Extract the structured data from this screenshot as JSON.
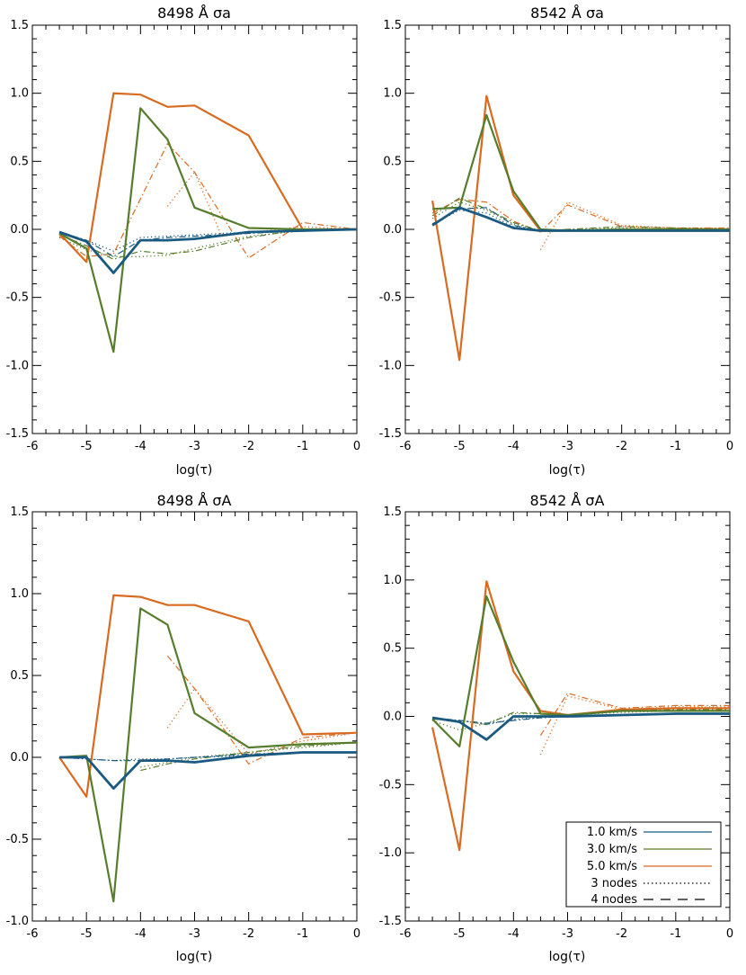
{
  "colors": {
    "v1": "#1a5a80",
    "v3": "#567d2c",
    "v5": "#d86b21",
    "axis": "#000000"
  },
  "legend": {
    "entries": [
      {
        "label": "1.0 km/s",
        "color_key": "v1",
        "style": "solid"
      },
      {
        "label": "3.0 km/s",
        "color_key": "v3",
        "style": "solid"
      },
      {
        "label": "5.0 km/s",
        "color_key": "v5",
        "style": "solid"
      },
      {
        "label": "3 nodes",
        "color_key": "axis",
        "style": "dotted"
      },
      {
        "label": "4 nodes",
        "color_key": "axis",
        "style": "dashed"
      }
    ]
  },
  "chart_data": [
    {
      "type": "line",
      "title": "8498 Å σa",
      "xlabel": "log(τ)",
      "ylabel": "",
      "xlim": [
        -6,
        0
      ],
      "ylim": [
        -1.5,
        1.5
      ],
      "xticks": [
        "-6",
        "-5",
        "-4",
        "-3",
        "-2",
        "-1",
        "0"
      ],
      "yticks": [
        "-1.5",
        "-1.0",
        "-0.5",
        "0.0",
        "0.5",
        "1.0",
        "1.5"
      ],
      "series": [
        {
          "color_key": "v5",
          "style": "solid",
          "width": 2.2,
          "x": [
            -5.5,
            -5,
            -4.5,
            -4,
            -3.5,
            -3,
            -2,
            -1,
            0
          ],
          "y": [
            -0.03,
            -0.24,
            1.0,
            0.99,
            0.9,
            0.91,
            0.69,
            0.0,
            0.0
          ]
        },
        {
          "color_key": "v3",
          "style": "solid",
          "width": 2.2,
          "x": [
            -5.5,
            -5,
            -4.5,
            -4,
            -3.5,
            -3,
            -2,
            -1,
            0
          ],
          "y": [
            -0.03,
            -0.14,
            -0.9,
            0.89,
            0.66,
            0.16,
            0.01,
            0.0,
            0.0
          ]
        },
        {
          "color_key": "v1",
          "style": "solid",
          "width": 2.8,
          "x": [
            -5.5,
            -5,
            -4.5,
            -4,
            -3.5,
            -3,
            -2,
            -1,
            0
          ],
          "y": [
            -0.02,
            -0.09,
            -0.32,
            -0.08,
            -0.08,
            -0.07,
            -0.02,
            -0.01,
            0.0
          ]
        },
        {
          "color_key": "v5",
          "style": "dashdot",
          "width": 1.2,
          "x": [
            -5.5,
            -5,
            -4.5,
            -3.5,
            -3,
            -2,
            -1,
            0
          ],
          "y": [
            -0.05,
            -0.2,
            -0.18,
            0.63,
            0.42,
            -0.21,
            0.05,
            0.0
          ]
        },
        {
          "color_key": "v5",
          "style": "dotted",
          "width": 1.3,
          "x": [
            -3.5,
            -3,
            -2.5,
            -1,
            0
          ],
          "y": [
            0.17,
            0.42,
            -0.05,
            0.02,
            0.0
          ]
        },
        {
          "color_key": "v3",
          "style": "dashdot",
          "width": 1.2,
          "x": [
            -5.5,
            -5,
            -4.5,
            -4,
            -3.5,
            -3,
            -2,
            -1,
            0
          ],
          "y": [
            -0.04,
            -0.12,
            -0.22,
            -0.16,
            -0.18,
            -0.16,
            -0.06,
            0.0,
            0.0
          ]
        },
        {
          "color_key": "v3",
          "style": "dotted",
          "width": 1.3,
          "x": [
            -5.5,
            -5,
            -4.5,
            -4,
            -3.5,
            -3,
            -2,
            -1,
            0
          ],
          "y": [
            -0.06,
            -0.15,
            -0.2,
            -0.2,
            -0.19,
            -0.14,
            -0.05,
            -0.01,
            0.0
          ]
        },
        {
          "color_key": "v1",
          "style": "dashdot",
          "width": 1.2,
          "x": [
            -5.5,
            -5,
            -4.5,
            -4,
            -3.5,
            -3,
            -2,
            -1,
            0
          ],
          "y": [
            -0.02,
            -0.08,
            -0.2,
            -0.08,
            -0.06,
            -0.05,
            -0.03,
            -0.01,
            0.0
          ]
        },
        {
          "color_key": "v1",
          "style": "dotted",
          "width": 1.3,
          "x": [
            -5.5,
            -5,
            -4.5,
            -4,
            -3.5,
            -3,
            -2,
            -1,
            0
          ],
          "y": [
            -0.02,
            -0.08,
            -0.16,
            -0.06,
            -0.05,
            -0.04,
            -0.02,
            -0.01,
            0.0
          ]
        }
      ]
    },
    {
      "type": "line",
      "title": "8542 Å σa",
      "xlabel": "log(τ)",
      "ylabel": "",
      "xlim": [
        -6,
        0
      ],
      "ylim": [
        -1.5,
        1.5
      ],
      "xticks": [
        "-6",
        "-5",
        "-4",
        "-3",
        "-2",
        "-1",
        "0"
      ],
      "yticks": [
        "-1.5",
        "-1.0",
        "-0.5",
        "0.0",
        "0.5",
        "1.0",
        "1.5"
      ],
      "series": [
        {
          "color_key": "v5",
          "style": "solid",
          "width": 2.2,
          "x": [
            -5.5,
            -5,
            -4.5,
            -4,
            -3.5,
            -3,
            -2,
            -1,
            0
          ],
          "y": [
            0.21,
            -0.96,
            0.98,
            0.25,
            -0.01,
            -0.01,
            -0.01,
            -0.01,
            -0.01
          ]
        },
        {
          "color_key": "v3",
          "style": "solid",
          "width": 2.2,
          "x": [
            -5.5,
            -5,
            -4.5,
            -4,
            -3.5,
            -3,
            -2,
            -1,
            0
          ],
          "y": [
            0.15,
            0.16,
            0.84,
            0.28,
            0.0,
            -0.01,
            0.0,
            0.0,
            0.0
          ]
        },
        {
          "color_key": "v1",
          "style": "solid",
          "width": 2.8,
          "x": [
            -5.5,
            -5,
            -4.5,
            -4,
            -3.5,
            -3,
            -2,
            -1,
            0
          ],
          "y": [
            0.03,
            0.16,
            0.09,
            0.01,
            -0.01,
            -0.01,
            -0.01,
            -0.01,
            -0.01
          ]
        },
        {
          "color_key": "v5",
          "style": "dashdot",
          "width": 1.2,
          "x": [
            -5.5,
            -5,
            -4.5,
            -4,
            -3.5,
            -3,
            -2,
            -1,
            0
          ],
          "y": [
            0.12,
            0.22,
            0.2,
            0.06,
            -0.02,
            0.18,
            0.02,
            0.01,
            0.01
          ]
        },
        {
          "color_key": "v5",
          "style": "dotted",
          "width": 1.3,
          "x": [
            -3.5,
            -3,
            -2,
            -1,
            0
          ],
          "y": [
            -0.15,
            0.2,
            0.03,
            0.01,
            0.01
          ]
        },
        {
          "color_key": "v3",
          "style": "dashdot",
          "width": 1.2,
          "x": [
            -5.5,
            -5,
            -4.5,
            -4,
            -3.5,
            -3,
            -2,
            -1,
            0
          ],
          "y": [
            0.1,
            0.23,
            0.15,
            0.05,
            -0.01,
            0.0,
            0.02,
            0.01,
            0.0
          ]
        },
        {
          "color_key": "v3",
          "style": "dotted",
          "width": 1.3,
          "x": [
            -5.5,
            -5,
            -4.5,
            -4,
            -3.5,
            -3,
            -2,
            -1,
            0
          ],
          "y": [
            0.08,
            0.2,
            0.14,
            0.04,
            -0.01,
            0.0,
            0.01,
            0.0,
            0.0
          ]
        },
        {
          "color_key": "v1",
          "style": "dashdot",
          "width": 1.2,
          "x": [
            -5.5,
            -5,
            -4.5,
            -4,
            -3.5,
            -3,
            -2,
            -1,
            0
          ],
          "y": [
            0.04,
            0.15,
            0.16,
            0.03,
            -0.01,
            -0.01,
            -0.01,
            -0.01,
            -0.01
          ]
        },
        {
          "color_key": "v1",
          "style": "dotted",
          "width": 1.3,
          "x": [
            -5.5,
            -5,
            -4.5,
            -4,
            -3.5,
            -3,
            -2,
            -1,
            0
          ],
          "y": [
            0.04,
            0.14,
            0.12,
            0.02,
            -0.01,
            -0.01,
            -0.01,
            -0.01,
            -0.01
          ]
        }
      ]
    },
    {
      "type": "line",
      "title": "8498 Å σA",
      "xlabel": "log(τ)",
      "ylabel": "",
      "xlim": [
        -6,
        0
      ],
      "ylim": [
        -1.0,
        1.5
      ],
      "xticks": [
        "-6",
        "-5",
        "-4",
        "-3",
        "-2",
        "-1",
        "0"
      ],
      "yticks": [
        "-1.0",
        "-0.5",
        "0.0",
        "0.5",
        "1.0",
        "1.5"
      ],
      "series": [
        {
          "color_key": "v5",
          "style": "solid",
          "width": 2.2,
          "x": [
            -5.5,
            -5,
            -4.5,
            -4,
            -3.5,
            -3,
            -2,
            -1,
            0
          ],
          "y": [
            0.0,
            -0.24,
            0.99,
            0.98,
            0.93,
            0.93,
            0.83,
            0.14,
            0.15
          ]
        },
        {
          "color_key": "v3",
          "style": "solid",
          "width": 2.2,
          "x": [
            -5.5,
            -5,
            -4.5,
            -4,
            -3.5,
            -3,
            -2,
            -1,
            0
          ],
          "y": [
            0.0,
            0.01,
            -0.88,
            0.91,
            0.81,
            0.27,
            0.06,
            0.08,
            0.09
          ]
        },
        {
          "color_key": "v1",
          "style": "solid",
          "width": 2.8,
          "x": [
            -5.5,
            -5,
            -4.5,
            -4,
            -3.5,
            -3,
            -2,
            -1,
            0
          ],
          "y": [
            0.0,
            0.0,
            -0.19,
            -0.02,
            -0.02,
            -0.03,
            0.01,
            0.03,
            0.03
          ]
        },
        {
          "color_key": "v5",
          "style": "dashdot",
          "width": 1.2,
          "x": [
            -3.5,
            -3,
            -2,
            -1,
            0
          ],
          "y": [
            0.62,
            0.42,
            -0.04,
            0.12,
            0.15
          ]
        },
        {
          "color_key": "v5",
          "style": "dotted",
          "width": 1.3,
          "x": [
            -3.5,
            -3,
            -2,
            -1,
            0
          ],
          "y": [
            0.18,
            0.42,
            0.02,
            0.1,
            0.15
          ]
        },
        {
          "color_key": "v3",
          "style": "dashdot",
          "width": 1.2,
          "x": [
            -4,
            -3.5,
            -3,
            -2,
            -1,
            0
          ],
          "y": [
            -0.08,
            -0.04,
            -0.01,
            0.03,
            0.07,
            0.09
          ]
        },
        {
          "color_key": "v3",
          "style": "dotted",
          "width": 1.3,
          "x": [
            -4,
            -3.5,
            -3,
            -2,
            -1,
            0
          ],
          "y": [
            -0.06,
            -0.03,
            0.0,
            0.03,
            0.06,
            0.09
          ]
        },
        {
          "color_key": "v1",
          "style": "dashdot",
          "width": 1.2,
          "x": [
            -5.5,
            -5,
            -4.5,
            -4,
            -3.5,
            -3,
            -2,
            -1,
            0
          ],
          "y": [
            0.0,
            -0.01,
            -0.02,
            -0.02,
            -0.01,
            0.0,
            0.02,
            0.03,
            0.03
          ]
        },
        {
          "color_key": "v1",
          "style": "dotted",
          "width": 1.3,
          "x": [
            -5.5,
            -5,
            -4.5,
            -4,
            -3.5,
            -3,
            -2,
            -1,
            0
          ],
          "y": [
            0.0,
            -0.01,
            -0.02,
            -0.01,
            -0.01,
            0.0,
            0.01,
            0.03,
            0.03
          ]
        }
      ]
    },
    {
      "type": "line",
      "title": "8542 Å σA",
      "xlabel": "log(τ)",
      "ylabel": "",
      "xlim": [
        -6,
        0
      ],
      "ylim": [
        -1.5,
        1.5
      ],
      "xticks": [
        "-6",
        "-5",
        "-4",
        "-3",
        "-2",
        "-1",
        "0"
      ],
      "yticks": [
        "-1.5",
        "-1.0",
        "-0.5",
        "0.0",
        "0.5",
        "1.0",
        "1.5"
      ],
      "series": [
        {
          "color_key": "v5",
          "style": "solid",
          "width": 2.2,
          "x": [
            -5.5,
            -5,
            -4.5,
            -4,
            -3.5,
            -3,
            -2,
            -1,
            0
          ],
          "y": [
            -0.08,
            -0.98,
            0.99,
            0.33,
            0.04,
            0.01,
            0.05,
            0.06,
            0.06
          ]
        },
        {
          "color_key": "v3",
          "style": "solid",
          "width": 2.2,
          "x": [
            -5.5,
            -5,
            -4.5,
            -4,
            -3.5,
            -3,
            -2,
            -1,
            0
          ],
          "y": [
            -0.02,
            -0.22,
            0.88,
            0.4,
            0.02,
            0.01,
            0.04,
            0.04,
            0.04
          ]
        },
        {
          "color_key": "v1",
          "style": "solid",
          "width": 2.8,
          "x": [
            -5.5,
            -5,
            -4.5,
            -4,
            -3.5,
            -3,
            -2,
            -1,
            0
          ],
          "y": [
            -0.01,
            -0.04,
            -0.17,
            0.0,
            0.0,
            0.0,
            0.01,
            0.02,
            0.02
          ]
        },
        {
          "color_key": "v5",
          "style": "dashdot",
          "width": 1.2,
          "x": [
            -3.5,
            -3,
            -2,
            -1,
            0
          ],
          "y": [
            -0.14,
            0.17,
            0.06,
            0.08,
            0.08
          ]
        },
        {
          "color_key": "v5",
          "style": "dotted",
          "width": 1.3,
          "x": [
            -3.5,
            -3,
            -2,
            -1,
            0
          ],
          "y": [
            -0.28,
            0.15,
            0.05,
            0.07,
            0.07
          ]
        },
        {
          "color_key": "v3",
          "style": "dashdot",
          "width": 1.2,
          "x": [
            -5.5,
            -5,
            -4.5,
            -4,
            -3.5,
            -3,
            -2,
            -1,
            0
          ],
          "y": [
            -0.02,
            -0.03,
            -0.06,
            0.03,
            0.02,
            0.01,
            0.04,
            0.05,
            0.05
          ]
        },
        {
          "color_key": "v3",
          "style": "dotted",
          "width": 1.3,
          "x": [
            -5.5,
            -5,
            -4.5,
            -4,
            -3.5,
            -3,
            -2,
            -1,
            0
          ],
          "y": [
            -0.03,
            -0.1,
            -0.05,
            0.02,
            0.02,
            0.01,
            0.03,
            0.04,
            0.04
          ]
        },
        {
          "color_key": "v1",
          "style": "dashdot",
          "width": 1.2,
          "x": [
            -5.5,
            -5,
            -4.5,
            -4,
            -3.5,
            -3,
            -2,
            -1,
            0
          ],
          "y": [
            -0.01,
            -0.03,
            -0.05,
            -0.03,
            -0.01,
            0.0,
            0.01,
            0.02,
            0.02
          ]
        },
        {
          "color_key": "v1",
          "style": "dotted",
          "width": 1.3,
          "x": [
            -5.5,
            -5,
            -4.5,
            -4,
            -3.5,
            -3,
            -2,
            -1,
            0
          ],
          "y": [
            -0.01,
            -0.03,
            -0.06,
            -0.02,
            -0.01,
            0.0,
            0.01,
            0.02,
            0.02
          ]
        }
      ]
    }
  ]
}
